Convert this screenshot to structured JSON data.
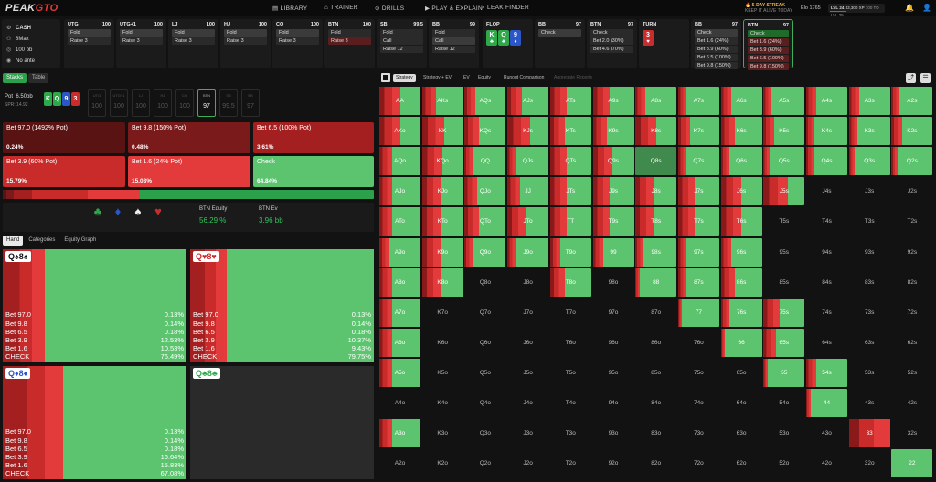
{
  "brand": {
    "pre": "PEAK",
    "post": "GTO"
  },
  "nav": [
    {
      "label": "LIBRARY",
      "icon": "book-icon"
    },
    {
      "label": "TRAINER",
      "icon": "cards-icon"
    },
    {
      "label": "DRILLS",
      "icon": "target-icon"
    },
    {
      "label": "PLAY & EXPLAIN",
      "icon": "play-icon"
    },
    {
      "label": "LEAK FINDER",
      "icon": "search-icon"
    }
  ],
  "streak": {
    "title": "5-DAY STREAK",
    "sub": "KEEP IT ALIVE TODAY"
  },
  "elo": "Elo 1765",
  "level": {
    "label": "LVL 24",
    "xp": "33,300 XP",
    "next": "700 TO LVL 25",
    "progress": 0.3
  },
  "game": {
    "type": "CASH",
    "players": "8Max",
    "stack": "100 bb",
    "ante": "No ante"
  },
  "positions": [
    {
      "name": "UTG",
      "stack": "100",
      "actions": [
        {
          "t": "Fold",
          "k": "sel"
        },
        {
          "t": "Raise 3",
          "k": ""
        }
      ]
    },
    {
      "name": "UTG+1",
      "stack": "100",
      "actions": [
        {
          "t": "Fold",
          "k": "sel"
        },
        {
          "t": "Raise 3",
          "k": ""
        }
      ]
    },
    {
      "name": "LJ",
      "stack": "100",
      "actions": [
        {
          "t": "Fold",
          "k": "sel"
        },
        {
          "t": "Raise 3",
          "k": ""
        }
      ]
    },
    {
      "name": "HJ",
      "stack": "100",
      "actions": [
        {
          "t": "Fold",
          "k": "sel"
        },
        {
          "t": "Raise 3",
          "k": ""
        }
      ]
    },
    {
      "name": "CO",
      "stack": "100",
      "actions": [
        {
          "t": "Fold",
          "k": "sel"
        },
        {
          "t": "Raise 3",
          "k": ""
        }
      ]
    },
    {
      "name": "BTN",
      "stack": "100",
      "actions": [
        {
          "t": "Fold",
          "k": ""
        },
        {
          "t": "Raise 3",
          "k": "red"
        }
      ]
    },
    {
      "name": "SB",
      "stack": "99.5",
      "actions": [
        {
          "t": "Fold",
          "k": ""
        },
        {
          "t": "Call",
          "k": ""
        },
        {
          "t": "Raise 12",
          "k": ""
        }
      ]
    },
    {
      "name": "BB",
      "stack": "99",
      "actions": [
        {
          "t": "Fold",
          "k": ""
        },
        {
          "t": "Call",
          "k": "sel"
        },
        {
          "t": "Raise 12",
          "k": ""
        }
      ]
    }
  ],
  "flop": {
    "label": "FLOP",
    "cards": [
      {
        "r": "K",
        "s": "♣",
        "c": "c-g"
      },
      {
        "r": "Q",
        "s": "♣",
        "c": "c-g"
      },
      {
        "r": "9",
        "s": "♦",
        "c": "c-b"
      }
    ]
  },
  "street2": [
    {
      "name": "BB",
      "stack": "97",
      "actions": [
        {
          "t": "Check",
          "k": "sel"
        }
      ]
    },
    {
      "name": "BTN",
      "stack": "97",
      "actions": [
        {
          "t": "Check",
          "k": ""
        },
        {
          "t": "Bet 2.0 (30%)",
          "k": ""
        },
        {
          "t": "Bet 4.6 (70%)",
          "k": ""
        }
      ]
    }
  ],
  "turn": {
    "label": "TURN",
    "cards": [
      {
        "r": "3",
        "s": "♥",
        "c": "c-r"
      }
    ]
  },
  "street3": [
    {
      "name": "BB",
      "stack": "97",
      "actions": [
        {
          "t": "Check",
          "k": "sel"
        },
        {
          "t": "Bet 1.6 (24%)",
          "k": ""
        },
        {
          "t": "Bet 3.9 (60%)",
          "k": ""
        },
        {
          "t": "Bet 6.5 (100%)",
          "k": ""
        },
        {
          "t": "Bet 9.8 (150%)",
          "k": ""
        }
      ]
    },
    {
      "name": "BTN",
      "stack": "97",
      "actions": [
        {
          "t": "Check",
          "k": "grn"
        },
        {
          "t": "Bet 1.6 (24%)",
          "k": "red"
        },
        {
          "t": "Bet 3.9 (60%)",
          "k": "red"
        },
        {
          "t": "Bet 6.5 (100%)",
          "k": "red"
        },
        {
          "t": "Bet 9.8 (150%)",
          "k": "red"
        }
      ]
    }
  ],
  "left_tabs": [
    "Stacks",
    "Table"
  ],
  "pot": {
    "label": "Pot",
    "value": "6.50bb",
    "spr": "SPR: 14.92",
    "cards": [
      {
        "r": "K",
        "c": "c-g"
      },
      {
        "r": "Q",
        "c": "c-g"
      },
      {
        "r": "9",
        "c": "c-b"
      },
      {
        "r": "3",
        "c": "c-r"
      }
    ]
  },
  "seats": [
    {
      "n": "UTG",
      "v": "100"
    },
    {
      "n": "UTG+1",
      "v": "100"
    },
    {
      "n": "LJ",
      "v": "100"
    },
    {
      "n": "HJ",
      "v": "100"
    },
    {
      "n": "CO",
      "v": "100"
    },
    {
      "n": "BTN",
      "v": "97",
      "act": true
    },
    {
      "n": "SB",
      "v": "99.5"
    },
    {
      "n": "BB",
      "v": "97"
    }
  ],
  "action_boxes": [
    {
      "label": "Bet 97.0 (1492% Pot)",
      "pct": "0.24%",
      "color": "#5a1313"
    },
    {
      "label": "Bet 9.8 (150% Pot)",
      "pct": "0.48%",
      "color": "#7a1a1a"
    },
    {
      "label": "Bet 6.5 (100% Pot)",
      "pct": "3.61%",
      "color": "#a42020"
    },
    {
      "label": "Bet 3.9 (60% Pot)",
      "pct": "15.79%",
      "color": "#c92a2a"
    },
    {
      "label": "Bet 1.6 (24% Pot)",
      "pct": "15.03%",
      "color": "#e33b3b"
    },
    {
      "label": "Check",
      "pct": "64.84%",
      "color": "#5cc46e"
    }
  ],
  "strip": [
    {
      "w": 0.01,
      "c": "#5a1313"
    },
    {
      "w": 0.02,
      "c": "#7a1a1a"
    },
    {
      "w": 0.05,
      "c": "#a42020"
    },
    {
      "w": 0.15,
      "c": "#c92a2a"
    },
    {
      "w": 0.14,
      "c": "#e33b3b"
    }
  ],
  "equity": {
    "suits": [
      {
        "s": "♣",
        "c": "#2fa84a"
      },
      {
        "s": "♦",
        "c": "#2c55c8"
      },
      {
        "s": "♠",
        "c": "#eeeeee"
      },
      {
        "s": "♥",
        "c": "#c92c2c"
      }
    ],
    "eq_label": "BTN Equity",
    "eq": "56.29 %",
    "ev_label": "BTN Ev",
    "ev": "3.96 bb"
  },
  "hand_tabs": [
    "Hand",
    "Categories",
    "Equity Graph"
  ],
  "hands": [
    {
      "title": "Q♠8♠",
      "rows": [
        [
          "Bet 97.0",
          "0.13%"
        ],
        [
          "Bet 9.8",
          "0.14%"
        ],
        [
          "Bet 6.5",
          "0.18%"
        ],
        [
          "Bet 3.9",
          "12.53%"
        ],
        [
          "Bet 1.6",
          "10.53%"
        ],
        [
          "CHECK",
          "76.49%"
        ]
      ],
      "red": 0.23
    },
    {
      "title": "Q♥8♥",
      "rows": [
        [
          "Bet 97.0",
          "0.13%"
        ],
        [
          "Bet 9.8",
          "0.14%"
        ],
        [
          "Bet 6.5",
          "0.18%"
        ],
        [
          "Bet 3.9",
          "10.37%"
        ],
        [
          "Bet 1.6",
          "9.43%"
        ],
        [
          "CHECK",
          "79.75%"
        ]
      ],
      "red": 0.2
    },
    {
      "title": "Q♦8♦",
      "rows": [
        [
          "Bet 97.0",
          "0.13%"
        ],
        [
          "Bet 9.8",
          "0.14%"
        ],
        [
          "Bet 6.5",
          "0.18%"
        ],
        [
          "Bet 3.9",
          "16.64%"
        ],
        [
          "Bet 1.6",
          "15.83%"
        ],
        [
          "CHECK",
          "67.08%"
        ]
      ],
      "red": 0.33
    },
    {
      "title": "Q♣8♣",
      "rows": [],
      "red": 0,
      "empty": true
    }
  ],
  "right_tabs": [
    {
      "t": "Strategy",
      "on": true
    },
    {
      "t": "Strategy + EV"
    },
    {
      "t": "EV"
    },
    {
      "t": "Equity"
    },
    {
      "t": "Runout Comparison"
    },
    {
      "t": "Aggregate Reports",
      "dim": true
    }
  ],
  "ranks": [
    "A",
    "K",
    "Q",
    "J",
    "T",
    "9",
    "8",
    "7",
    "6",
    "5",
    "4",
    "3",
    "2"
  ],
  "grid_red": [
    [
      0.5,
      0.35,
      0.25,
      0.35,
      0.4,
      0.4,
      0.25,
      0.2,
      0.25,
      0.2,
      0.25,
      0.25,
      0.2
    ],
    [
      0.5,
      0.55,
      0.35,
      0.55,
      0.35,
      0.35,
      0.5,
      0.3,
      0.35,
      0.25,
      0.2,
      0.2,
      0.25
    ],
    [
      0.3,
      0.5,
      0.2,
      0.2,
      0.4,
      0.45,
      0.0,
      0.2,
      0.2,
      0.15,
      0.2,
      0.15,
      0.15
    ],
    [
      0.3,
      0.45,
      0.3,
      0.3,
      0.4,
      0.4,
      0.45,
      0.4,
      0.5,
      0.6,
      -1,
      -1,
      -1
    ],
    [
      0.3,
      0.45,
      0.35,
      0.45,
      0.4,
      0.4,
      0.45,
      0.4,
      0.5,
      -1,
      -1,
      -1,
      -1
    ],
    [
      0.25,
      0.45,
      0.2,
      0.2,
      0.25,
      0.25,
      0.2,
      0.2,
      0.25,
      -1,
      -1,
      -1,
      -1
    ],
    [
      0.3,
      0.45,
      -1,
      -1,
      0.35,
      -1,
      0.1,
      0.2,
      0.35,
      -1,
      -1,
      -1,
      -1
    ],
    [
      0.3,
      -1,
      -1,
      -1,
      -1,
      -1,
      -1,
      0.1,
      0.2,
      0.4,
      -1,
      -1,
      -1
    ],
    [
      0.3,
      -1,
      -1,
      -1,
      -1,
      -1,
      -1,
      -1,
      0.1,
      0.3,
      -1,
      -1,
      -1
    ],
    [
      0.3,
      -1,
      -1,
      -1,
      -1,
      -1,
      -1,
      -1,
      -1,
      0.1,
      0.25,
      -1,
      -1
    ],
    [
      -1,
      -1,
      -1,
      -1,
      -1,
      -1,
      -1,
      -1,
      -1,
      -1,
      0.1,
      -1,
      -1
    ],
    [
      0.3,
      -1,
      -1,
      -1,
      -1,
      -1,
      -1,
      -1,
      -1,
      -1,
      -1,
      1.0,
      -1
    ],
    [
      -1,
      -1,
      -1,
      -1,
      -1,
      -1,
      -1,
      -1,
      -1,
      -1,
      -1,
      -1,
      0.0
    ]
  ]
}
